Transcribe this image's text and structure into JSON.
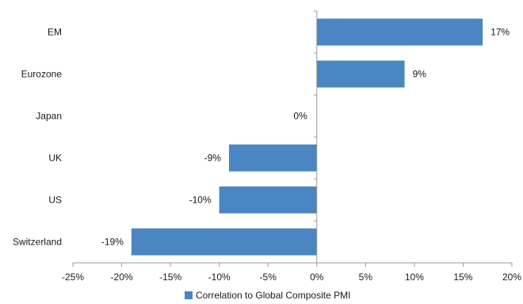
{
  "chart_data": {
    "type": "bar",
    "orientation": "horizontal",
    "categories": [
      "EM",
      "Eurozone",
      "Japan",
      "UK",
      "US",
      "Switzerland"
    ],
    "series": [
      {
        "name": "Correlation to Global Composite PMI",
        "values": [
          17,
          9,
          0,
          -9,
          -10,
          -19
        ],
        "labels": [
          "17%",
          "9%",
          "0%",
          "-9%",
          "-10%",
          "-19%"
        ]
      }
    ],
    "xlim": [
      -25,
      20
    ],
    "xticks": [
      -25,
      -20,
      -15,
      -10,
      -5,
      0,
      5,
      10,
      15,
      20
    ],
    "xtick_labels": [
      "-25%",
      "-20%",
      "-15%",
      "-10%",
      "-5%",
      "0%",
      "5%",
      "10%",
      "15%",
      "20%"
    ],
    "title": "",
    "xlabel": "",
    "ylabel": "",
    "grid": false,
    "legend": "bottom-center",
    "colors": {
      "bar": "#4a86c1",
      "axis": "#999999"
    }
  }
}
